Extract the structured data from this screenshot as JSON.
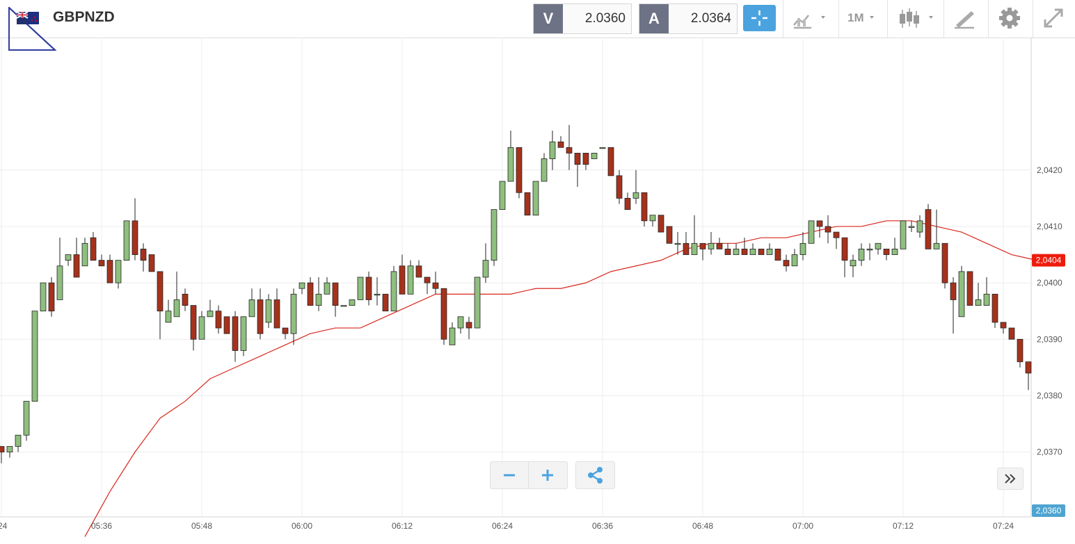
{
  "header": {
    "symbol": "GBPNZD",
    "bid_label": "V",
    "bid_value": "2.0360",
    "ask_label": "A",
    "ask_value": "2.0364",
    "timeframe": "1M"
  },
  "colors": {
    "up_candle": "#8fbf7f",
    "down_candle": "#a6321c",
    "ma_line": "#d9261c",
    "current_price_tag": "#ee1c0c",
    "bid_price_tag": "#4ea4d0",
    "accent": "#4aa3df"
  },
  "icons": [
    "flag-icon",
    "crosshair-icon",
    "chart-type-icon",
    "candlestick-icon",
    "drawing-tools-icon",
    "gear-icon",
    "fullscreen-icon",
    "share-icon",
    "double-chevron-right-icon"
  ],
  "chart_data": {
    "type": "candlestick",
    "ylim": [
      2.03585,
      2.04435
    ],
    "y_ticks": [
      "2,0370",
      "2,0380",
      "2,0390",
      "2,0400",
      "2,0410",
      "2,0420"
    ],
    "y_tick_values": [
      2.037,
      2.038,
      2.039,
      2.04,
      2.041,
      2.042
    ],
    "x_ticks": [
      ":24",
      "05:36",
      "05:48",
      "06:00",
      "06:12",
      "06:24",
      "06:36",
      "06:48",
      "07:00",
      "07:12",
      "07:24"
    ],
    "x_tick_minutes": [
      324,
      336,
      348,
      360,
      372,
      384,
      396,
      408,
      420,
      432,
      444
    ],
    "x_range_minutes": [
      324,
      447.5
    ],
    "current_price_label": "2,0404",
    "current_price": 2.0404,
    "bid_price_label": "2,0360",
    "bid_price": 2.036,
    "candles": [
      [
        324,
        2.0371,
        2.0371,
        2.0368,
        2.037
      ],
      [
        325,
        2.037,
        2.0371,
        2.0369,
        2.0371
      ],
      [
        326,
        2.0371,
        2.0373,
        2.037,
        2.0373
      ],
      [
        327,
        2.0373,
        2.0379,
        2.0372,
        2.0379
      ],
      [
        328,
        2.0379,
        2.0395,
        2.0379,
        2.0395
      ],
      [
        329,
        2.0395,
        2.04,
        2.0395,
        2.04
      ],
      [
        330,
        2.04,
        2.0401,
        2.0394,
        2.0395
      ],
      [
        331,
        2.0397,
        2.0408,
        2.0397,
        2.0403
      ],
      [
        332,
        2.0404,
        2.0405,
        2.0403,
        2.0405
      ],
      [
        333,
        2.0405,
        2.0408,
        2.0401,
        2.0401
      ],
      [
        334,
        2.0403,
        2.0408,
        2.0403,
        2.0407
      ],
      [
        335,
        2.0408,
        2.0409,
        2.0404,
        2.0404
      ],
      [
        336,
        2.0404,
        2.0405,
        2.0403,
        2.0403
      ],
      [
        337,
        2.0404,
        2.0405,
        2.04,
        2.04
      ],
      [
        338,
        2.04,
        2.0404,
        2.0399,
        2.0404
      ],
      [
        339,
        2.0404,
        2.0411,
        2.0404,
        2.0411
      ],
      [
        340,
        2.0411,
        2.0415,
        2.0404,
        2.0405
      ],
      [
        341,
        2.0406,
        2.0407,
        2.0402,
        2.0404
      ],
      [
        342,
        2.0405,
        2.0405,
        2.0402,
        2.0402
      ],
      [
        343,
        2.0402,
        2.0402,
        2.039,
        2.0395
      ],
      [
        344,
        2.0393,
        2.0397,
        2.0393,
        2.0395
      ],
      [
        345,
        2.0394,
        2.0402,
        2.0394,
        2.0397
      ],
      [
        346,
        2.0398,
        2.0399,
        2.0395,
        2.0396
      ],
      [
        347,
        2.0396,
        2.0396,
        2.0388,
        2.039
      ],
      [
        348,
        2.039,
        2.0395,
        2.039,
        2.0394
      ],
      [
        349,
        2.0394,
        2.0397,
        2.0394,
        2.0395
      ],
      [
        350,
        2.0395,
        2.0396,
        2.0391,
        2.0392
      ],
      [
        351,
        2.0394,
        2.0394,
        2.0391,
        2.0391
      ],
      [
        352,
        2.0394,
        2.0395,
        2.0386,
        2.0388
      ],
      [
        353,
        2.0388,
        2.0394,
        2.0387,
        2.0394
      ],
      [
        354,
        2.0394,
        2.0399,
        2.0394,
        2.0397
      ],
      [
        355,
        2.0397,
        2.0399,
        2.039,
        2.0391
      ],
      [
        356,
        2.0393,
        2.0398,
        2.0392,
        2.0397
      ],
      [
        357,
        2.0397,
        2.0399,
        2.0392,
        2.0392
      ],
      [
        358,
        2.0392,
        2.0392,
        2.039,
        2.0391
      ],
      [
        359,
        2.0391,
        2.0399,
        2.0389,
        2.0398
      ],
      [
        360,
        2.0399,
        2.04,
        2.0398,
        2.04
      ],
      [
        361,
        2.04,
        2.0401,
        2.0396,
        2.0396
      ],
      [
        362,
        2.0396,
        2.0401,
        2.0395,
        2.0398
      ],
      [
        363,
        2.0398,
        2.0401,
        2.0398,
        2.04
      ],
      [
        364,
        2.04,
        2.04,
        2.0394,
        2.0396
      ],
      [
        365,
        2.0396,
        2.0396,
        2.0396,
        2.0396
      ],
      [
        366,
        2.0396,
        2.0397,
        2.0396,
        2.0397
      ],
      [
        367,
        2.0397,
        2.0401,
        2.0397,
        2.0401
      ],
      [
        368,
        2.0401,
        2.0402,
        2.0396,
        2.0397
      ],
      [
        369,
        2.0398,
        2.0401,
        2.0396,
        2.0398
      ],
      [
        370,
        2.0398,
        2.0398,
        2.0395,
        2.0395
      ],
      [
        371,
        2.0395,
        2.0403,
        2.0395,
        2.0402
      ],
      [
        372,
        2.0403,
        2.0405,
        2.0398,
        2.0398
      ],
      [
        373,
        2.0398,
        2.0404,
        2.0398,
        2.0403
      ],
      [
        374,
        2.0403,
        2.0404,
        2.0401,
        2.0401
      ],
      [
        375,
        2.0401,
        2.0401,
        2.0398,
        2.04
      ],
      [
        376,
        2.04,
        2.0402,
        2.0398,
        2.0399
      ],
      [
        377,
        2.0399,
        2.0399,
        2.0389,
        2.039
      ],
      [
        378,
        2.0389,
        2.0393,
        2.0389,
        2.0392
      ],
      [
        379,
        2.0392,
        2.0394,
        2.0391,
        2.0394
      ],
      [
        380,
        2.0393,
        2.0394,
        2.039,
        2.0392
      ],
      [
        381,
        2.0392,
        2.0401,
        2.0392,
        2.0401
      ],
      [
        382,
        2.0401,
        2.0407,
        2.04,
        2.0404
      ],
      [
        383,
        2.0404,
        2.0413,
        2.0403,
        2.0413
      ],
      [
        384,
        2.0413,
        2.0418,
        2.0413,
        2.0418
      ],
      [
        385,
        2.0418,
        2.0427,
        2.0418,
        2.0424
      ],
      [
        386,
        2.0424,
        2.0424,
        2.0415,
        2.0416
      ],
      [
        387,
        2.0416,
        2.0416,
        2.0412,
        2.0412
      ],
      [
        388,
        2.0412,
        2.0418,
        2.0412,
        2.0418
      ],
      [
        389,
        2.0418,
        2.0423,
        2.0418,
        2.0422
      ],
      [
        390,
        2.0422,
        2.0427,
        2.042,
        2.0425
      ],
      [
        391,
        2.0425,
        2.0426,
        2.0424,
        2.0424
      ],
      [
        392,
        2.0424,
        2.0428,
        2.042,
        2.0423
      ],
      [
        393,
        2.0423,
        2.0423,
        2.0417,
        2.0421
      ],
      [
        394,
        2.0423,
        2.0423,
        2.042,
        2.0421
      ],
      [
        395,
        2.0422,
        2.0423,
        2.0422,
        2.0423
      ],
      [
        396,
        2.0424,
        2.0424,
        2.0424,
        2.0424
      ],
      [
        397,
        2.0424,
        2.0424,
        2.0419,
        2.0419
      ],
      [
        398,
        2.0419,
        2.042,
        2.0414,
        2.0415
      ],
      [
        399,
        2.0415,
        2.0416,
        2.0413,
        2.0413
      ],
      [
        400,
        2.0415,
        2.042,
        2.0414,
        2.0416
      ],
      [
        401,
        2.0416,
        2.0416,
        2.041,
        2.0411
      ],
      [
        402,
        2.0411,
        2.0412,
        2.041,
        2.0412
      ],
      [
        403,
        2.0412,
        2.0412,
        2.0409,
        2.0409
      ],
      [
        404,
        2.041,
        2.041,
        2.0407,
        2.0407
      ],
      [
        405,
        2.0407,
        2.0409,
        2.0405,
        2.0407
      ],
      [
        406,
        2.0407,
        2.0409,
        2.0405,
        2.0405
      ],
      [
        407,
        2.0405,
        2.0412,
        2.0405,
        2.0407
      ],
      [
        408,
        2.0407,
        2.0407,
        2.0404,
        2.0406
      ],
      [
        409,
        2.0406,
        2.0409,
        2.0405,
        2.0407
      ],
      [
        410,
        2.0407,
        2.0408,
        2.0406,
        2.0406
      ],
      [
        411,
        2.0406,
        2.0407,
        2.0405,
        2.0405
      ],
      [
        412,
        2.0405,
        2.0407,
        2.0405,
        2.0406
      ],
      [
        413,
        2.0406,
        2.0408,
        2.0405,
        2.0405
      ],
      [
        414,
        2.0405,
        2.0407,
        2.0405,
        2.0406
      ],
      [
        415,
        2.0406,
        2.0406,
        2.0405,
        2.0405
      ],
      [
        416,
        2.0405,
        2.0407,
        2.0405,
        2.0406
      ],
      [
        417,
        2.0406,
        2.0406,
        2.0404,
        2.0404
      ],
      [
        418,
        2.0404,
        2.0405,
        2.0402,
        2.0403
      ],
      [
        419,
        2.0403,
        2.0406,
        2.0403,
        2.0405
      ],
      [
        420,
        2.0405,
        2.0409,
        2.0404,
        2.0407
      ],
      [
        421,
        2.0407,
        2.0411,
        2.0407,
        2.0411
      ],
      [
        422,
        2.0411,
        2.0411,
        2.0408,
        2.041
      ],
      [
        423,
        2.041,
        2.0412,
        2.0407,
        2.0409
      ],
      [
        424,
        2.0409,
        2.0409,
        2.0406,
        2.0408
      ],
      [
        425,
        2.0408,
        2.0408,
        2.0401,
        2.0404
      ],
      [
        426,
        2.0403,
        2.0405,
        2.0401,
        2.0404
      ],
      [
        427,
        2.0404,
        2.0407,
        2.0403,
        2.0406
      ],
      [
        428,
        2.0406,
        2.0407,
        2.0404,
        2.0406
      ],
      [
        429,
        2.0406,
        2.0407,
        2.0405,
        2.0407
      ],
      [
        430,
        2.0406,
        2.0406,
        2.0404,
        2.0405
      ],
      [
        431,
        2.0405,
        2.0408,
        2.0405,
        2.0406
      ],
      [
        432,
        2.0406,
        2.0411,
        2.0406,
        2.0411
      ],
      [
        433,
        2.041,
        2.0411,
        2.0409,
        2.041
      ],
      [
        434,
        2.0409,
        2.0412,
        2.0408,
        2.0411
      ],
      [
        435,
        2.0413,
        2.0414,
        2.0406,
        2.0406
      ],
      [
        436,
        2.0406,
        2.0413,
        2.0406,
        2.0407
      ],
      [
        437,
        2.0407,
        2.0407,
        2.0399,
        2.04
      ],
      [
        438,
        2.04,
        2.0401,
        2.0391,
        2.0397
      ],
      [
        439,
        2.0394,
        2.0403,
        2.0394,
        2.0402
      ],
      [
        440,
        2.0402,
        2.0402,
        2.0396,
        2.0396
      ],
      [
        441,
        2.0396,
        2.04,
        2.0396,
        2.0397
      ],
      [
        442,
        2.0396,
        2.0401,
        2.0396,
        2.0398
      ],
      [
        443,
        2.0398,
        2.0398,
        2.0392,
        2.0393
      ],
      [
        444,
        2.0393,
        2.0393,
        2.0391,
        2.0392
      ],
      [
        445,
        2.0392,
        2.0392,
        2.039,
        2.039
      ],
      [
        446,
        2.039,
        2.039,
        2.0385,
        2.0386
      ],
      [
        447,
        2.0386,
        2.0386,
        2.0381,
        2.0384
      ],
      [
        448,
        2.0383,
        2.0387,
        2.0383,
        2.0385
      ]
    ],
    "moving_average": [
      [
        334,
        2.0355
      ],
      [
        337,
        2.0363
      ],
      [
        340,
        2.037
      ],
      [
        343,
        2.0376
      ],
      [
        346,
        2.0379
      ],
      [
        349,
        2.0383
      ],
      [
        352,
        2.0385
      ],
      [
        355,
        2.0387
      ],
      [
        358,
        2.0389
      ],
      [
        361,
        2.0391
      ],
      [
        364,
        2.0392
      ],
      [
        367,
        2.0392
      ],
      [
        370,
        2.0394
      ],
      [
        373,
        2.0396
      ],
      [
        376,
        2.0398
      ],
      [
        379,
        2.0398
      ],
      [
        382,
        2.0398
      ],
      [
        385,
        2.0398
      ],
      [
        388,
        2.0399
      ],
      [
        391,
        2.0399
      ],
      [
        394,
        2.04
      ],
      [
        397,
        2.0402
      ],
      [
        400,
        2.0403
      ],
      [
        403,
        2.0404
      ],
      [
        406,
        2.0406
      ],
      [
        409,
        2.0407
      ],
      [
        412,
        2.0407
      ],
      [
        415,
        2.0408
      ],
      [
        418,
        2.0408
      ],
      [
        421,
        2.0409
      ],
      [
        424,
        2.041
      ],
      [
        427,
        2.041
      ],
      [
        430,
        2.0411
      ],
      [
        433,
        2.0411
      ],
      [
        436,
        2.041
      ],
      [
        439,
        2.0409
      ],
      [
        442,
        2.0407
      ],
      [
        445,
        2.0405
      ],
      [
        448,
        2.0404
      ]
    ]
  }
}
